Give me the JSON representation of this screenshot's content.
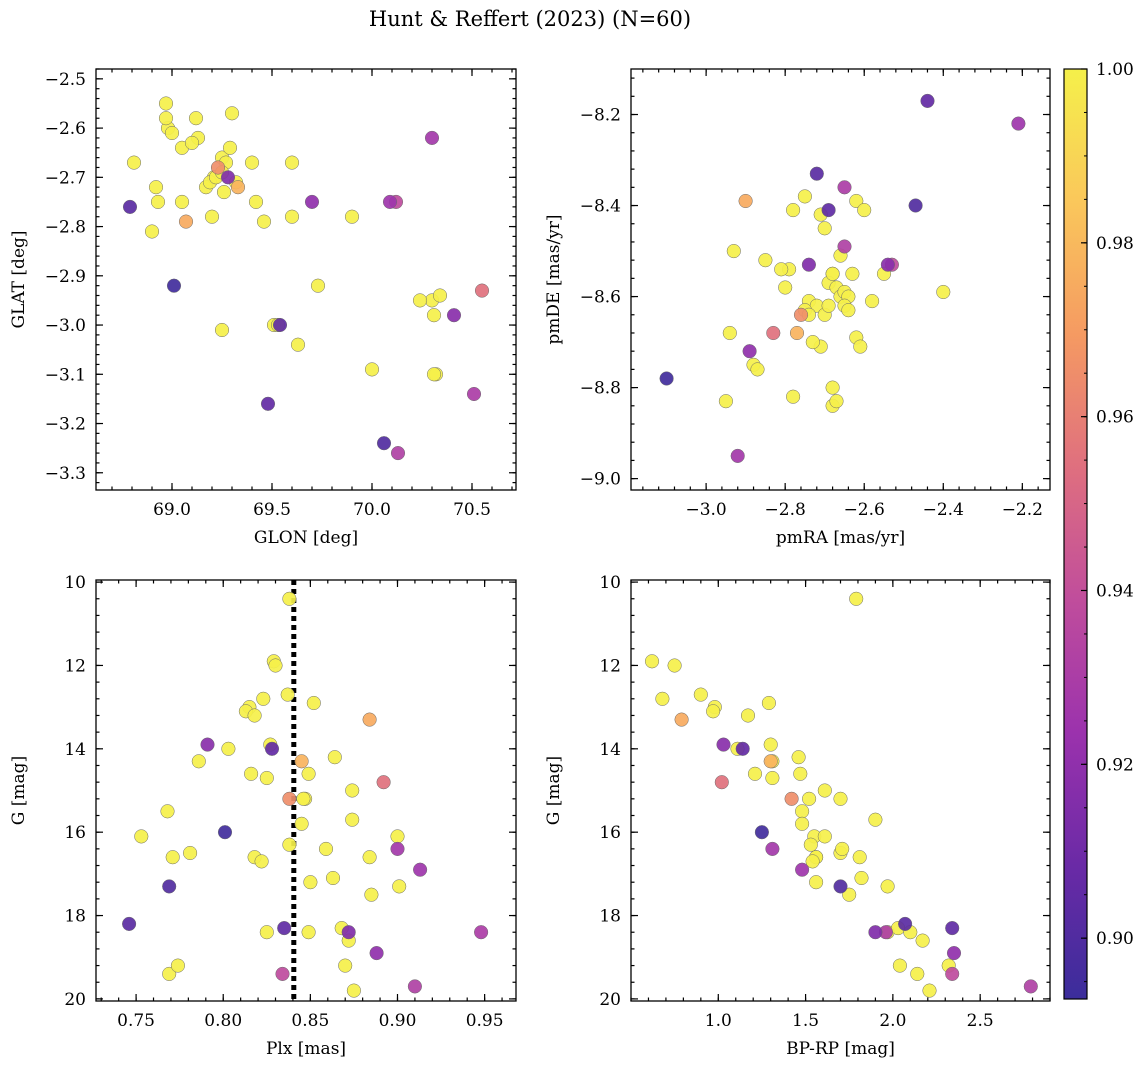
{
  "figure": {
    "title": "Hunt & Reffert (2023) (N=60)",
    "background": "#ffffff"
  },
  "colorbar": {
    "min": 0.893,
    "max": 1.0,
    "ticks": [
      0.9,
      0.92,
      0.94,
      0.96,
      0.98,
      1.0
    ],
    "tick_labels": [
      "0.90",
      "0.92",
      "0.94",
      "0.96",
      "0.98",
      "1.00"
    ],
    "colormap": "plasma",
    "stops": [
      "#3b2d9b",
      "#6a2aa6",
      "#9b32ad",
      "#c04d9c",
      "#df6f7f",
      "#f59a62",
      "#fac75b",
      "#f5f04a"
    ]
  },
  "stars": [
    {
      "glon": 69.51,
      "glat": -3.0,
      "pmra": -2.74,
      "pmde": -8.61,
      "plx": 0.838,
      "g": 10.4,
      "bprp": 1.79,
      "p": 1.0
    },
    {
      "glon": 69.05,
      "glat": -2.75,
      "pmra": -2.93,
      "pmde": -8.5,
      "plx": 0.829,
      "g": 11.9,
      "bprp": 0.62,
      "p": 1.0
    },
    {
      "glon": 69.17,
      "glat": -2.72,
      "pmra": -2.78,
      "pmde": -8.41,
      "plx": 0.83,
      "g": 12.0,
      "bprp": 0.75,
      "p": 1.0
    },
    {
      "glon": 68.9,
      "glat": -2.81,
      "pmra": -2.75,
      "pmde": -8.38,
      "plx": 0.823,
      "g": 12.8,
      "bprp": 0.68,
      "p": 1.0
    },
    {
      "glon": 69.12,
      "glat": -2.58,
      "pmra": -2.88,
      "pmde": -8.75,
      "plx": 0.837,
      "g": 12.7,
      "bprp": 0.9,
      "p": 1.0
    },
    {
      "glon": 70.3,
      "glat": -2.95,
      "pmra": -2.71,
      "pmde": -8.71,
      "plx": 0.815,
      "g": 13.0,
      "bprp": 0.98,
      "p": 1.0
    },
    {
      "glon": 69.21,
      "glat": -2.7,
      "pmra": -2.68,
      "pmde": -8.55,
      "plx": 0.813,
      "g": 13.1,
      "bprp": 0.97,
      "p": 1.0
    },
    {
      "glon": 69.6,
      "glat": -2.78,
      "pmra": -2.79,
      "pmde": -8.54,
      "plx": 0.818,
      "g": 13.2,
      "bprp": 1.17,
      "p": 1.0
    },
    {
      "glon": 68.98,
      "glat": -2.6,
      "pmra": -2.87,
      "pmde": -8.76,
      "plx": 0.852,
      "g": 12.9,
      "bprp": 1.29,
      "p": 1.0
    },
    {
      "glon": 69.07,
      "glat": -2.79,
      "pmra": -2.9,
      "pmde": -8.39,
      "plx": 0.884,
      "g": 13.3,
      "bprp": 0.79,
      "p": 0.975
    },
    {
      "glon": 69.01,
      "glat": -2.92,
      "pmra": -3.1,
      "pmde": -8.78,
      "plx": 0.801,
      "g": 16.0,
      "bprp": 1.25,
      "p": 0.895
    },
    {
      "glon": 70.06,
      "glat": -3.24,
      "pmra": -2.47,
      "pmde": -8.4,
      "plx": 0.769,
      "g": 17.3,
      "bprp": 1.7,
      "p": 0.9
    },
    {
      "glon": 68.79,
      "glat": -2.76,
      "pmra": -2.72,
      "pmde": -8.33,
      "plx": 0.746,
      "g": 18.2,
      "bprp": 2.07,
      "p": 0.903
    },
    {
      "glon": 69.48,
      "glat": -3.16,
      "pmra": -2.44,
      "pmde": -8.17,
      "plx": 0.828,
      "g": 14.0,
      "bprp": 1.14,
      "p": 0.906
    },
    {
      "glon": 69.54,
      "glat": -3.0,
      "pmra": -2.69,
      "pmde": -8.41,
      "plx": 0.835,
      "g": 18.3,
      "bprp": 2.34,
      "p": 0.905
    },
    {
      "glon": 69.28,
      "glat": -2.7,
      "pmra": -2.74,
      "pmde": -8.53,
      "plx": 0.872,
      "g": 18.4,
      "bprp": 1.9,
      "p": 0.915
    },
    {
      "glon": 70.41,
      "glat": -2.98,
      "pmra": -2.54,
      "pmde": -8.53,
      "plx": 0.791,
      "g": 13.9,
      "bprp": 1.03,
      "p": 0.918
    },
    {
      "glon": 69.7,
      "glat": -2.75,
      "pmra": -2.89,
      "pmde": -8.72,
      "plx": 0.888,
      "g": 18.9,
      "bprp": 2.35,
      "p": 0.92
    },
    {
      "glon": 70.09,
      "glat": -2.75,
      "pmra": -2.21,
      "pmde": -8.22,
      "plx": 0.913,
      "g": 16.9,
      "bprp": 1.48,
      "p": 0.925
    },
    {
      "glon": 70.3,
      "glat": -2.62,
      "pmra": -2.92,
      "pmde": -8.95,
      "plx": 0.9,
      "g": 16.4,
      "bprp": 1.31,
      "p": 0.927
    },
    {
      "glon": 70.51,
      "glat": -3.14,
      "pmra": -2.65,
      "pmde": -8.36,
      "plx": 0.948,
      "g": 18.4,
      "bprp": 1.96,
      "p": 0.93
    },
    {
      "glon": 70.13,
      "glat": -3.26,
      "pmra": -2.65,
      "pmde": -8.49,
      "plx": 0.91,
      "g": 19.7,
      "bprp": 2.79,
      "p": 0.932
    },
    {
      "glon": 70.12,
      "glat": -2.75,
      "pmra": -2.53,
      "pmde": -8.53,
      "plx": 0.834,
      "g": 19.4,
      "bprp": 2.34,
      "p": 0.938
    },
    {
      "glon": 70.55,
      "glat": -2.93,
      "pmra": -2.83,
      "pmde": -8.68,
      "plx": 0.892,
      "g": 14.8,
      "bprp": 1.02,
      "p": 0.955
    },
    {
      "glon": 69.23,
      "glat": -2.68,
      "pmra": -2.76,
      "pmde": -8.64,
      "plx": 0.838,
      "g": 15.2,
      "bprp": 1.42,
      "p": 0.965
    },
    {
      "glon": 69.33,
      "glat": -2.72,
      "pmra": -2.77,
      "pmde": -8.68,
      "plx": 0.845,
      "g": 14.3,
      "bprp": 1.3,
      "p": 0.978
    },
    {
      "glon": 68.81,
      "glat": -2.67,
      "pmra": -2.71,
      "pmde": -8.42,
      "plx": 0.753,
      "g": 16.1,
      "bprp": 1.55,
      "p": 1.0
    },
    {
      "glon": 68.92,
      "glat": -2.72,
      "pmra": -2.7,
      "pmde": -8.45,
      "plx": 0.768,
      "g": 15.5,
      "bprp": 1.48,
      "p": 1.0
    },
    {
      "glon": 68.97,
      "glat": -2.58,
      "pmra": -2.69,
      "pmde": -8.57,
      "plx": 0.771,
      "g": 16.6,
      "bprp": 1.56,
      "p": 1.0
    },
    {
      "glon": 68.97,
      "glat": -2.55,
      "pmra": -2.68,
      "pmde": -8.55,
      "plx": 0.781,
      "g": 16.5,
      "bprp": 1.7,
      "p": 1.0
    },
    {
      "glon": 69.13,
      "glat": -2.62,
      "pmra": -2.67,
      "pmde": -8.58,
      "plx": 0.786,
      "g": 14.3,
      "bprp": 1.31,
      "p": 1.0
    },
    {
      "glon": 69.19,
      "glat": -2.71,
      "pmra": -2.66,
      "pmde": -8.51,
      "plx": 0.803,
      "g": 14.0,
      "bprp": 1.11,
      "p": 1.0
    },
    {
      "glon": 69.2,
      "glat": -2.78,
      "pmra": -2.66,
      "pmde": -8.6,
      "plx": 0.816,
      "g": 14.6,
      "bprp": 1.21,
      "p": 1.0
    },
    {
      "glon": 69.25,
      "glat": -3.01,
      "pmra": -2.65,
      "pmde": -8.59,
      "plx": 0.825,
      "g": 14.7,
      "bprp": 1.31,
      "p": 1.0
    },
    {
      "glon": 69.25,
      "glat": -2.66,
      "pmra": -2.64,
      "pmde": -8.6,
      "plx": 0.818,
      "g": 16.6,
      "bprp": 1.56,
      "p": 1.0
    },
    {
      "glon": 69.27,
      "glat": -2.67,
      "pmra": -2.63,
      "pmde": -8.55,
      "plx": 0.822,
      "g": 16.7,
      "bprp": 1.54,
      "p": 1.0
    },
    {
      "glon": 69.29,
      "glat": -2.64,
      "pmra": -2.62,
      "pmde": -8.39,
      "plx": 0.838,
      "g": 16.3,
      "bprp": 1.53,
      "p": 1.0
    },
    {
      "glon": 69.3,
      "glat": -2.57,
      "pmra": -2.62,
      "pmde": -8.69,
      "plx": 0.845,
      "g": 15.8,
      "bprp": 1.48,
      "p": 1.0
    },
    {
      "glon": 69.4,
      "glat": -2.67,
      "pmra": -2.61,
      "pmde": -8.71,
      "plx": 0.847,
      "g": 15.2,
      "bprp": 1.52,
      "p": 1.0
    },
    {
      "glon": 69.42,
      "glat": -2.75,
      "pmra": -2.6,
      "pmde": -8.41,
      "plx": 0.849,
      "g": 14.6,
      "bprp": 1.47,
      "p": 1.0
    },
    {
      "glon": 69.46,
      "glat": -2.79,
      "pmra": -2.58,
      "pmde": -8.61,
      "plx": 0.85,
      "g": 17.2,
      "bprp": 1.56,
      "p": 1.0
    },
    {
      "glon": 69.53,
      "glat": -3.0,
      "pmra": -2.55,
      "pmde": -8.55,
      "plx": 0.849,
      "g": 18.4,
      "bprp": 1.97,
      "p": 1.0
    },
    {
      "glon": 69.6,
      "glat": -2.67,
      "pmra": -2.4,
      "pmde": -8.59,
      "plx": 0.859,
      "g": 16.4,
      "bprp": 1.71,
      "p": 1.0
    },
    {
      "glon": 69.63,
      "glat": -3.04,
      "pmra": -2.68,
      "pmde": -8.84,
      "plx": 0.863,
      "g": 17.1,
      "bprp": 1.82,
      "p": 1.0
    },
    {
      "glon": 69.73,
      "glat": -2.92,
      "pmra": -2.68,
      "pmde": -8.8,
      "plx": 0.864,
      "g": 14.2,
      "bprp": 1.46,
      "p": 1.0
    },
    {
      "glon": 69.9,
      "glat": -2.78,
      "pmra": -2.67,
      "pmde": -8.83,
      "plx": 0.868,
      "g": 18.3,
      "bprp": 2.03,
      "p": 1.0
    },
    {
      "glon": 70.0,
      "glat": -3.09,
      "pmra": -2.78,
      "pmde": -8.82,
      "plx": 0.87,
      "g": 19.2,
      "bprp": 2.04,
      "p": 1.0
    },
    {
      "glon": 70.24,
      "glat": -2.95,
      "pmra": -2.73,
      "pmde": -8.7,
      "plx": 0.872,
      "g": 18.6,
      "bprp": 2.17,
      "p": 1.0
    },
    {
      "glon": 70.31,
      "glat": -2.98,
      "pmra": -2.95,
      "pmde": -8.83,
      "plx": 0.874,
      "g": 15.0,
      "bprp": 1.61,
      "p": 1.0
    },
    {
      "glon": 70.32,
      "glat": -3.1,
      "pmra": -2.94,
      "pmde": -8.68,
      "plx": 0.874,
      "g": 15.7,
      "bprp": 1.9,
      "p": 1.0
    },
    {
      "glon": 70.34,
      "glat": -2.94,
      "pmra": -2.72,
      "pmde": -8.62,
      "plx": 0.875,
      "g": 19.8,
      "bprp": 2.21,
      "p": 1.0
    },
    {
      "glon": 70.31,
      "glat": -3.1,
      "pmra": -2.7,
      "pmde": -8.64,
      "plx": 0.884,
      "g": 16.6,
      "bprp": 1.81,
      "p": 1.0
    },
    {
      "glon": 68.93,
      "glat": -2.75,
      "pmra": -2.75,
      "pmde": -8.63,
      "plx": 0.885,
      "g": 17.5,
      "bprp": 1.75,
      "p": 1.0
    },
    {
      "glon": 69.0,
      "glat": -2.61,
      "pmra": -2.74,
      "pmde": -8.64,
      "plx": 0.9,
      "g": 16.1,
      "bprp": 1.61,
      "p": 1.0
    },
    {
      "glon": 69.05,
      "glat": -2.64,
      "pmra": -2.81,
      "pmde": -8.54,
      "plx": 0.901,
      "g": 17.3,
      "bprp": 1.97,
      "p": 1.0
    },
    {
      "glon": 69.1,
      "glat": -2.63,
      "pmra": -2.85,
      "pmde": -8.52,
      "plx": 0.769,
      "g": 19.4,
      "bprp": 2.14,
      "p": 1.0
    },
    {
      "glon": 69.22,
      "glat": -2.7,
      "pmra": -2.8,
      "pmde": -8.58,
      "plx": 0.774,
      "g": 19.2,
      "bprp": 2.32,
      "p": 1.0
    },
    {
      "glon": 69.25,
      "glat": -2.69,
      "pmra": -2.69,
      "pmde": -8.62,
      "plx": 0.825,
      "g": 18.4,
      "bprp": 2.1,
      "p": 1.0
    },
    {
      "glon": 69.26,
      "glat": -2.73,
      "pmra": -2.65,
      "pmde": -8.62,
      "plx": 0.846,
      "g": 15.2,
      "bprp": 1.7,
      "p": 1.0
    },
    {
      "glon": 69.32,
      "glat": -2.71,
      "pmra": -2.64,
      "pmde": -8.63,
      "plx": 0.827,
      "g": 13.9,
      "bprp": 1.3,
      "p": 1.0
    }
  ],
  "chart_data": [
    {
      "type": "scatter",
      "key": "sky",
      "title": "",
      "xlabel": "GLON [deg]",
      "ylabel": "GLAT [deg]",
      "xfield": "glon",
      "yfield": "glat",
      "xlim": [
        68.62,
        70.72
      ],
      "ylim": [
        -3.335,
        -2.48
      ],
      "y_inverted": false,
      "xticks": [
        69.0,
        69.5,
        70.0,
        70.5
      ],
      "xtick_labels": [
        "69.0",
        "69.5",
        "70.0",
        "70.5"
      ],
      "yticks": [
        -2.5,
        -2.6,
        -2.7,
        -2.8,
        -2.9,
        -3.0,
        -3.1,
        -3.2,
        -3.3
      ],
      "ytick_labels": [
        "−2.5",
        "−2.6",
        "−2.7",
        "−2.8",
        "−2.9",
        "−3.0",
        "−3.1",
        "−3.2",
        "−3.3"
      ]
    },
    {
      "type": "scatter",
      "key": "pm",
      "title": "",
      "xlabel": "pmRA [mas/yr]",
      "ylabel": "pmDE [mas/yr]",
      "xfield": "pmra",
      "yfield": "pmde",
      "xlim": [
        -3.19,
        -2.13
      ],
      "ylim": [
        -9.025,
        -8.1
      ],
      "y_inverted": false,
      "xticks": [
        -3.0,
        -2.8,
        -2.6,
        -2.4,
        -2.2
      ],
      "xtick_labels": [
        "−3.0",
        "−2.8",
        "−2.6",
        "−2.4",
        "−2.2"
      ],
      "yticks": [
        -8.2,
        -8.4,
        -8.6,
        -8.8,
        -9.0
      ],
      "ytick_labels": [
        "−8.2",
        "−8.4",
        "−8.6",
        "−8.8",
        "−9.0"
      ]
    },
    {
      "type": "scatter",
      "key": "plx",
      "title": "",
      "xlabel": "Plx [mas]",
      "ylabel": "G [mag]",
      "xfield": "plx",
      "yfield": "g",
      "xlim": [
        0.727,
        0.968
      ],
      "ylim": [
        9.95,
        20.05
      ],
      "y_inverted": true,
      "xticks": [
        0.75,
        0.8,
        0.85,
        0.9,
        0.95
      ],
      "xtick_labels": [
        "0.75",
        "0.80",
        "0.85",
        "0.90",
        "0.95"
      ],
      "yticks": [
        10,
        12,
        14,
        16,
        18,
        20
      ],
      "ytick_labels": [
        "10",
        "12",
        "14",
        "16",
        "18",
        "20"
      ],
      "vline": {
        "x": 0.8405,
        "style": "dotted",
        "color": "#000000"
      }
    },
    {
      "type": "scatter",
      "key": "cmd",
      "title": "",
      "xlabel": "BP-RP [mag]",
      "ylabel": "G [mag]",
      "xfield": "bprp",
      "yfield": "g",
      "xlim": [
        0.5,
        2.9
      ],
      "ylim": [
        9.95,
        20.05
      ],
      "y_inverted": true,
      "xticks": [
        1.0,
        1.5,
        2.0,
        2.5
      ],
      "xtick_labels": [
        "1.0",
        "1.5",
        "2.0",
        "2.5"
      ],
      "yticks": [
        10,
        12,
        14,
        16,
        18,
        20
      ],
      "ytick_labels": [
        "10",
        "12",
        "14",
        "16",
        "18",
        "20"
      ]
    }
  ]
}
